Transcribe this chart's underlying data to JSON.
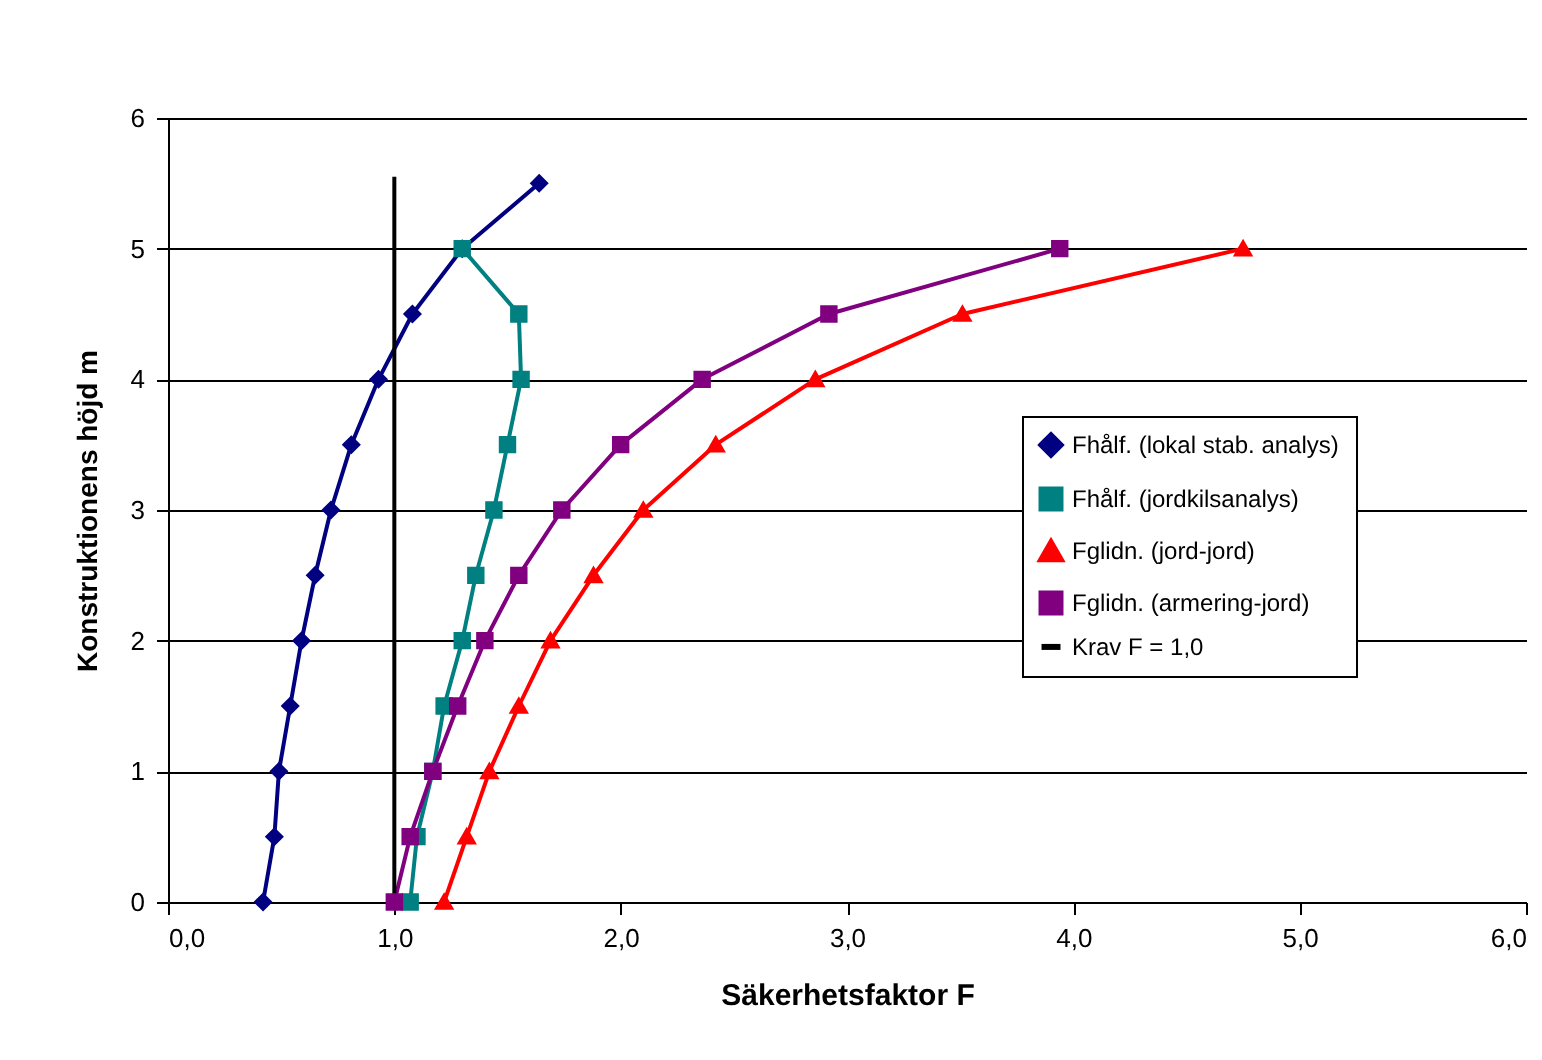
{
  "chart_data": {
    "type": "line",
    "xlabel": "Säkerhetsfaktor F",
    "ylabel": "Konstruktionens höjd m",
    "xlim": [
      0,
      6
    ],
    "xticks": [
      {
        "value": 0,
        "label": "0,0"
      },
      {
        "value": 1,
        "label": "1,0"
      },
      {
        "value": 2,
        "label": "2,0"
      },
      {
        "value": 3,
        "label": "3,0"
      },
      {
        "value": 4,
        "label": "4,0"
      },
      {
        "value": 5,
        "label": "5,0"
      },
      {
        "value": 6,
        "label": "6,0"
      }
    ],
    "ylim": [
      0,
      6
    ],
    "yticks": [
      0,
      1,
      2,
      3,
      4,
      5,
      6
    ],
    "grid": "y",
    "legend": "right",
    "series": [
      {
        "name": "Fhålf. (lokal stab. analys)",
        "color": "#000080",
        "marker": "diamond",
        "x": [
          0.42,
          0.47,
          0.49,
          0.54,
          0.59,
          0.65,
          0.72,
          0.81,
          0.93,
          1.08,
          1.3,
          1.64
        ],
        "values": [
          0,
          0.5,
          1,
          1.5,
          2,
          2.5,
          3,
          3.5,
          4,
          4.5,
          5,
          5.5
        ]
      },
      {
        "name": "Fhålf. (jordkilsanalys)",
        "color": "#008080",
        "marker": "square",
        "x": [
          1.07,
          1.1,
          1.17,
          1.22,
          1.3,
          1.36,
          1.44,
          1.5,
          1.56,
          1.55,
          1.3
        ],
        "values": [
          0,
          0.5,
          1,
          1.5,
          2,
          2.5,
          3,
          3.5,
          4,
          4.5,
          5
        ]
      },
      {
        "name": "Fglidn. (jord-jord)",
        "color": "#ff0000",
        "marker": "triangle",
        "x": [
          1.22,
          1.32,
          1.42,
          1.55,
          1.69,
          1.88,
          2.1,
          2.42,
          2.86,
          3.51,
          4.75
        ],
        "values": [
          0,
          0.5,
          1,
          1.5,
          2,
          2.5,
          3,
          3.5,
          4,
          4.5,
          5
        ]
      },
      {
        "name": "Fglidn. (armering-jord)",
        "color": "#800080",
        "marker": "square",
        "x": [
          1.0,
          1.07,
          1.17,
          1.28,
          1.4,
          1.55,
          1.74,
          2.0,
          2.36,
          2.92,
          3.94
        ],
        "values": [
          0,
          0.5,
          1,
          1.5,
          2,
          2.5,
          3,
          3.5,
          4,
          4.5,
          5
        ]
      },
      {
        "name": "Krav F = 1,0",
        "color": "#000000",
        "marker": "none",
        "x": [
          1.0,
          1.0
        ],
        "values": [
          0,
          5.55
        ]
      }
    ]
  }
}
